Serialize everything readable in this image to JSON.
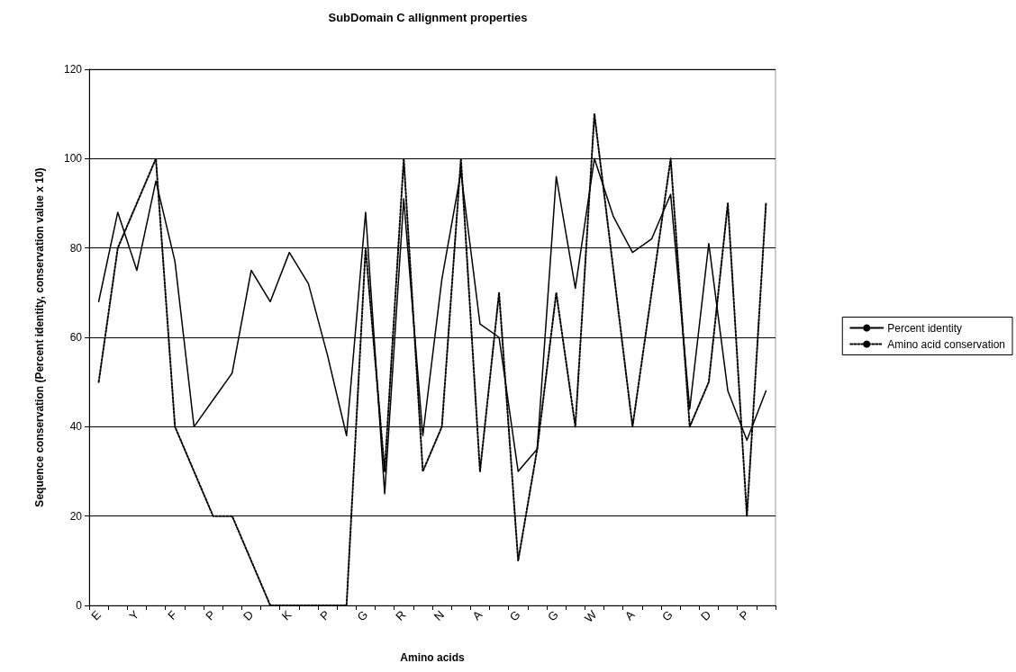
{
  "chart_data": {
    "type": "line",
    "title": "SubDomain C allignment properties",
    "xlabel": "Amino acids",
    "ylabel": "Sequence conservation (Percent identity, conservation value x 10)",
    "categories": [
      "E",
      null,
      "Y",
      null,
      "F",
      null,
      "P",
      null,
      "D",
      null,
      "K",
      null,
      "P",
      null,
      "G",
      null,
      "R",
      null,
      "N",
      null,
      "A",
      null,
      "G",
      null,
      "G",
      null,
      "W",
      null,
      "A",
      null,
      "G",
      null,
      "D",
      null,
      "P",
      null
    ],
    "series": [
      {
        "name": "Percent identity",
        "color": "#000000",
        "line_style": "solid",
        "values": [
          68,
          88,
          75,
          95,
          77,
          40,
          46,
          52,
          75,
          68,
          79,
          72,
          56,
          38,
          88,
          25,
          91,
          38,
          73,
          97,
          63,
          60,
          30,
          35,
          96,
          71,
          100,
          87,
          79,
          82,
          92,
          44,
          81,
          48,
          37,
          48
        ]
      },
      {
        "name": "Amino acid conservation",
        "color": "#000000",
        "line_style": "dotted",
        "values": [
          50,
          80,
          90,
          100,
          40,
          30,
          20,
          20,
          10,
          0,
          0,
          0,
          0,
          0,
          80,
          30,
          100,
          30,
          40,
          100,
          30,
          70,
          10,
          35,
          70,
          40,
          110,
          75,
          40,
          70,
          100,
          40,
          50,
          90,
          20,
          90
        ]
      }
    ],
    "ylim": [
      0,
      120
    ],
    "yticks": [
      0,
      20,
      40,
      60,
      80,
      100,
      120
    ],
    "grid": "y",
    "legend": "right",
    "marker": "none"
  }
}
